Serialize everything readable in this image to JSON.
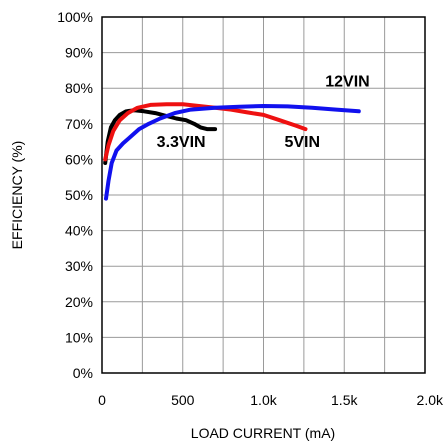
{
  "chart_data": {
    "type": "line",
    "title": "",
    "xlabel": "LOAD CURRENT (mA)",
    "ylabel": "EFFICIENCY (%)",
    "xlim": [
      0,
      2000
    ],
    "ylim": [
      0,
      100
    ],
    "x_ticks": [
      0,
      500,
      1000,
      1500,
      2000
    ],
    "x_tick_labels": [
      "0",
      "500",
      "1.0k",
      "1.5k",
      "2.0k"
    ],
    "y_ticks": [
      0,
      10,
      20,
      30,
      40,
      50,
      60,
      70,
      80,
      90,
      100
    ],
    "y_tick_labels": [
      "0%",
      "10%",
      "20%",
      "30%",
      "40%",
      "50%",
      "60%",
      "70%",
      "80%",
      "90%",
      "100%"
    ],
    "grid": true,
    "series": [
      {
        "name": "3.3VIN",
        "color": "#000000",
        "x": [
          20,
          35,
          55,
          80,
          110,
          150,
          200,
          260,
          330,
          400,
          460,
          520,
          570,
          610,
          650,
          700
        ],
        "y": [
          59,
          65,
          69,
          71,
          72.5,
          73.5,
          73.8,
          73.5,
          73,
          72.2,
          71.5,
          71,
          70,
          69,
          68.5,
          68.5
        ]
      },
      {
        "name": "5VIN",
        "color": "#ee1111",
        "x": [
          20,
          40,
          70,
          110,
          160,
          220,
          300,
          400,
          500,
          600,
          700,
          800,
          900,
          1000,
          1100,
          1200,
          1260
        ],
        "y": [
          60,
          64,
          68,
          71,
          73,
          74.5,
          75.3,
          75.5,
          75.5,
          75,
          74.5,
          74,
          73.2,
          72.5,
          71,
          69.5,
          68.5
        ]
      },
      {
        "name": "12VIN",
        "color": "#1111ee",
        "x": [
          25,
          40,
          60,
          90,
          130,
          180,
          230,
          290,
          360,
          450,
          550,
          700,
          850,
          1000,
          1150,
          1300,
          1450,
          1590
        ],
        "y": [
          49,
          54,
          59,
          62.5,
          64.5,
          66.5,
          68.5,
          70,
          71.5,
          73,
          74,
          74.5,
          74.8,
          75,
          74.9,
          74.5,
          74,
          73.5
        ]
      }
    ],
    "annotations": [
      {
        "text": "3.3VIN",
        "x": 490,
        "y": 63.5
      },
      {
        "text": "5VIN",
        "x": 1240,
        "y": 63.5
      },
      {
        "text": "12VIN",
        "x": 1520,
        "y": 80.5
      }
    ]
  }
}
